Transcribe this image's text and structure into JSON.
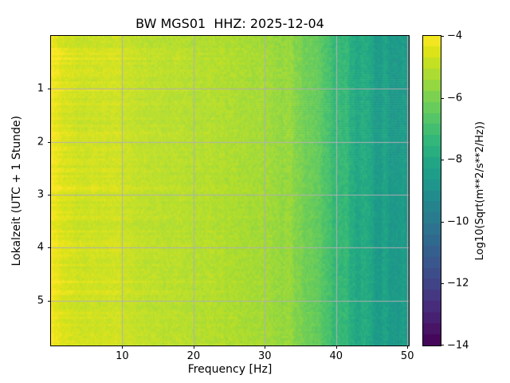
{
  "chart_data": {
    "type": "heatmap",
    "title": "BW MGS01  HHZ: 2025-12-04",
    "xlabel": "Frequency [Hz]",
    "ylabel": "Lokalzeit (UTC + 1 Stunde)",
    "colorbar_label": "Log10(Sqrt(m**2/s**2/Hz))",
    "xlim": [
      0,
      50.2
    ],
    "ylim": [
      0,
      5.85
    ],
    "x_tick_values": [
      10,
      20,
      30,
      40,
      50
    ],
    "x_tick_labels": [
      "10",
      "20",
      "30",
      "40",
      "50"
    ],
    "y_tick_values": [
      1,
      2,
      3,
      4,
      5
    ],
    "y_tick_labels": [
      "1",
      "2",
      "3",
      "4",
      "5"
    ],
    "colorbar_range": [
      -14,
      -4
    ],
    "colorbar_tick_values": [
      -4,
      -6,
      -8,
      -10,
      -12,
      -14
    ],
    "colorbar_tick_labels": [
      "−4",
      "−6",
      "−8",
      "−10",
      "−12",
      "−14"
    ],
    "colorbar_bands": 28,
    "grid": true,
    "grid_color": "#b0b0b0",
    "colormap": "viridis",
    "viridis_stops": [
      [
        0.0,
        "#440154"
      ],
      [
        0.05,
        "#471365"
      ],
      [
        0.1,
        "#482475"
      ],
      [
        0.15,
        "#463480"
      ],
      [
        0.2,
        "#414487"
      ],
      [
        0.25,
        "#3b528b"
      ],
      [
        0.3,
        "#355f8d"
      ],
      [
        0.35,
        "#2f6c8e"
      ],
      [
        0.4,
        "#2a788e"
      ],
      [
        0.45,
        "#25848e"
      ],
      [
        0.5,
        "#21918c"
      ],
      [
        0.55,
        "#1e9c89"
      ],
      [
        0.6,
        "#22a884"
      ],
      [
        0.65,
        "#2fb47c"
      ],
      [
        0.7,
        "#44bf70"
      ],
      [
        0.75,
        "#5ec962"
      ],
      [
        0.8,
        "#7ad151"
      ],
      [
        0.85,
        "#9bd93c"
      ],
      [
        0.9,
        "#bddf26"
      ],
      [
        0.95,
        "#dfe318"
      ],
      [
        1.0,
        "#fde725"
      ]
    ],
    "spectrum_profile_hz_to_log10": [
      [
        0,
        -4.1
      ],
      [
        0.6,
        -4.35
      ],
      [
        2,
        -4.65
      ],
      [
        5,
        -4.8
      ],
      [
        9,
        -4.75
      ],
      [
        13,
        -5.0
      ],
      [
        18,
        -5.1
      ],
      [
        24,
        -5.2
      ],
      [
        29,
        -5.35
      ],
      [
        33,
        -5.6
      ],
      [
        35,
        -5.9
      ],
      [
        37,
        -6.3
      ],
      [
        39,
        -6.9
      ],
      [
        41,
        -7.4
      ],
      [
        44,
        -8.0
      ],
      [
        47,
        -8.5
      ],
      [
        50.2,
        -8.9
      ]
    ],
    "texture_noise": {
      "seed": 11,
      "cell": 0.16,
      "column": 0.7,
      "row": 0.22,
      "row_bright": 0.45,
      "lowfreq_decay_hz": 16
    }
  }
}
